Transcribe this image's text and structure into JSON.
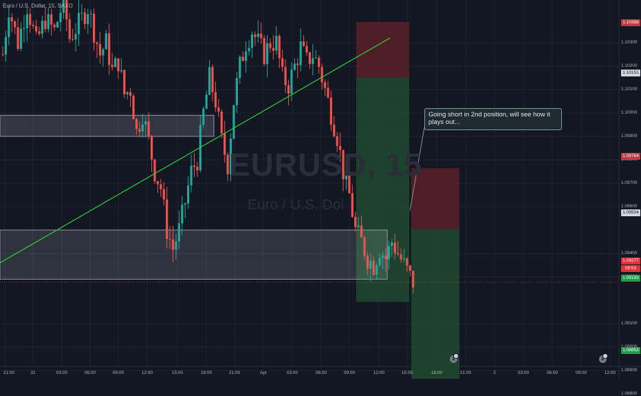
{
  "header": {
    "symbol_line": "Euro / U.S. Dollar, 15, SAXO"
  },
  "watermark": {
    "ticker": "EURUSD, 15",
    "name": "Euro / U.S. Dol"
  },
  "note": {
    "text": "Going short  in 2nd position, will see how it plays out..."
  },
  "axis": {
    "y_ticks": [
      "1.10300",
      "1.10200",
      "1.10100",
      "1.10000",
      "1.09900",
      "1.09800",
      "1.09700",
      "1.09600",
      "1.09400",
      "1.09300",
      "1.09100",
      "1.09000",
      "1.08900",
      "1.08800"
    ],
    "x_ticks": [
      "21:00",
      "31",
      "03:00",
      "06:00",
      "09:00",
      "12:00",
      "15:00",
      "18:00",
      "21:00",
      "Apr",
      "03:00",
      "06:00",
      "09:00",
      "12:00",
      "15:00",
      "18:00",
      "21:00",
      "2",
      "03:00",
      "06:00",
      "09:00",
      "12:00"
    ]
  },
  "price_badges": {
    "top_target": "1.10388",
    "entry_1": "1.10151",
    "stop_2": "1.09764",
    "entry_2": "1.09504",
    "current": "1.09277",
    "countdown": "08:53",
    "target_1": "1.09193",
    "target_2": "1.08853"
  },
  "markers": {
    "a": "2",
    "b": "2"
  },
  "colors": {
    "background": "#131722",
    "up": "#26a69a",
    "down": "#ef5350",
    "trend": "#2bd13a",
    "profit": "#1f4a2f",
    "loss": "#5a1e26"
  },
  "chart_data": {
    "type": "candlestick",
    "symbol": "Euro / U.S. Dollar",
    "interval": "15",
    "source": "SAXO",
    "ylim": [
      1.0876,
      1.1048
    ],
    "grid": true,
    "trendline": {
      "from": [
        "31 Mar 00:00",
        1.0936
      ],
      "to": [
        "1 Apr 16:00",
        1.1032
      ]
    },
    "zones": [
      {
        "name": "upper box",
        "price_range": [
          1.099,
          1.0999
        ],
        "from": "31 Mar 00:00",
        "to": "31 Mar 19:00"
      },
      {
        "name": "lower box",
        "price_range": [
          1.0929,
          1.095
        ],
        "from": "31 Mar 00:00",
        "to": "1 Apr 12:30"
      }
    ],
    "positions": [
      {
        "side": "short",
        "entry": 1.10151,
        "stop": 1.10388,
        "target": 1.09193,
        "from": "1 Apr 09:00",
        "to": "1 Apr 15:00"
      },
      {
        "side": "short",
        "entry": 1.09504,
        "stop": 1.09764,
        "target": 1.08853,
        "from": "1 Apr 15:00",
        "to": "1 Apr 21:00"
      }
    ],
    "last_price": 1.09277,
    "price_path": [
      [
        0,
        1.1025
      ],
      [
        2,
        1.1045
      ],
      [
        5,
        1.103
      ],
      [
        8,
        1.1046
      ],
      [
        11,
        1.103
      ],
      [
        14,
        1.104
      ],
      [
        17,
        1.1035
      ],
      [
        20,
        1.1048
      ],
      [
        22,
        1.1032
      ],
      [
        25,
        1.1038
      ],
      [
        28,
        1.1045
      ],
      [
        30,
        1.1035
      ],
      [
        32,
        1.1025
      ],
      [
        34,
        1.103
      ],
      [
        36,
        1.1018
      ],
      [
        38,
        1.1022
      ],
      [
        40,
        1.1008
      ],
      [
        42,
        1.101
      ],
      [
        44,
        1.0992
      ],
      [
        46,
        1.1
      ],
      [
        48,
        1.0988
      ],
      [
        50,
        1.0975
      ],
      [
        52,
        1.0968
      ],
      [
        54,
        1.095
      ],
      [
        56,
        1.0942
      ],
      [
        58,
        1.095
      ],
      [
        60,
        1.0962
      ],
      [
        62,
        1.0975
      ],
      [
        64,
        1.098
      ],
      [
        66,
        1.1
      ],
      [
        68,
        1.1015
      ],
      [
        70,
        1.1005
      ],
      [
        72,
        1.0988
      ],
      [
        74,
        1.0978
      ],
      [
        76,
        1.1005
      ],
      [
        78,
        1.102
      ],
      [
        80,
        1.103
      ],
      [
        82,
        1.1035
      ],
      [
        84,
        1.103
      ],
      [
        86,
        1.1025
      ],
      [
        88,
        1.103
      ],
      [
        90,
        1.103
      ],
      [
        92,
        1.1015
      ],
      [
        94,
        1.1012
      ],
      [
        96,
        1.102
      ],
      [
        98,
        1.1028
      ],
      [
        100,
        1.1022
      ],
      [
        102,
        1.1025
      ],
      [
        104,
        1.102
      ],
      [
        106,
        1.101
      ],
      [
        108,
        1.1
      ],
      [
        110,
        1.099
      ],
      [
        112,
        1.0975
      ],
      [
        114,
        1.0965
      ],
      [
        116,
        1.095
      ],
      [
        118,
        1.0945
      ],
      [
        120,
        1.0938
      ],
      [
        122,
        1.0935
      ],
      [
        124,
        1.0942
      ],
      [
        126,
        1.0938
      ],
      [
        128,
        1.0945
      ],
      [
        130,
        1.094
      ],
      [
        132,
        1.0935
      ],
      [
        134,
        1.093
      ],
      [
        135,
        1.09277
      ]
    ]
  }
}
